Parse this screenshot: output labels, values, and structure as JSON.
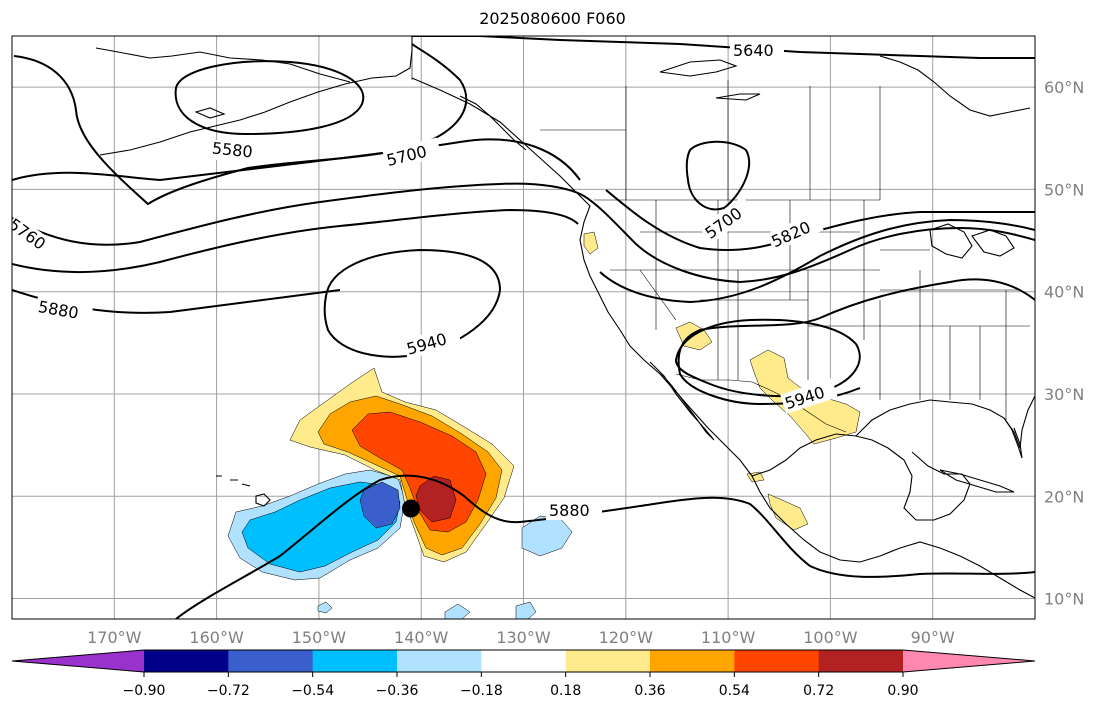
{
  "title": "2025080600 F060",
  "map": {
    "projection": "plate-carree",
    "lon_range": [
      -180,
      -80
    ],
    "lat_range": [
      8,
      65
    ],
    "gridlines": true,
    "lon_ticks": [
      {
        "lon": -170,
        "label": "170°W"
      },
      {
        "lon": -160,
        "label": "160°W"
      },
      {
        "lon": -150,
        "label": "150°W"
      },
      {
        "lon": -140,
        "label": "140°W"
      },
      {
        "lon": -130,
        "label": "130°W"
      },
      {
        "lon": -120,
        "label": "120°W"
      },
      {
        "lon": -110,
        "label": "110°W"
      },
      {
        "lon": -100,
        "label": "100°W"
      },
      {
        "lon": -90,
        "label": "90°W"
      }
    ],
    "lat_ticks": [
      {
        "lat": 60,
        "label": "60°N"
      },
      {
        "lat": 50,
        "label": "50°N"
      },
      {
        "lat": 40,
        "label": "40°N"
      },
      {
        "lat": 30,
        "label": "30°N"
      },
      {
        "lat": 20,
        "label": "20°N"
      },
      {
        "lat": 10,
        "label": "10°N"
      }
    ],
    "contour_labels": [
      "5640",
      "5580",
      "5700",
      "5760",
      "5880",
      "5940",
      "5700",
      "5820",
      "5940",
      "5880"
    ],
    "marker": {
      "lon": -141,
      "lat": 18.8,
      "color": "#000000"
    }
  },
  "colorbar": {
    "colors": [
      "#9932cc",
      "#00008b",
      "#3a5fcd",
      "#00bfff",
      "#b0e2ff",
      "#ffffff",
      "#ffeb8c",
      "#ffa500",
      "#ff4500",
      "#b22222",
      "#ff88b0"
    ],
    "tick_labels": [
      "−0.90",
      "−0.72",
      "−0.54",
      "−0.36",
      "−0.18",
      "0.18",
      "0.36",
      "0.54",
      "0.72",
      "0.90"
    ],
    "tick_values": [
      -0.9,
      -0.72,
      -0.54,
      -0.36,
      -0.18,
      0.18,
      0.36,
      0.54,
      0.72,
      0.9
    ]
  }
}
